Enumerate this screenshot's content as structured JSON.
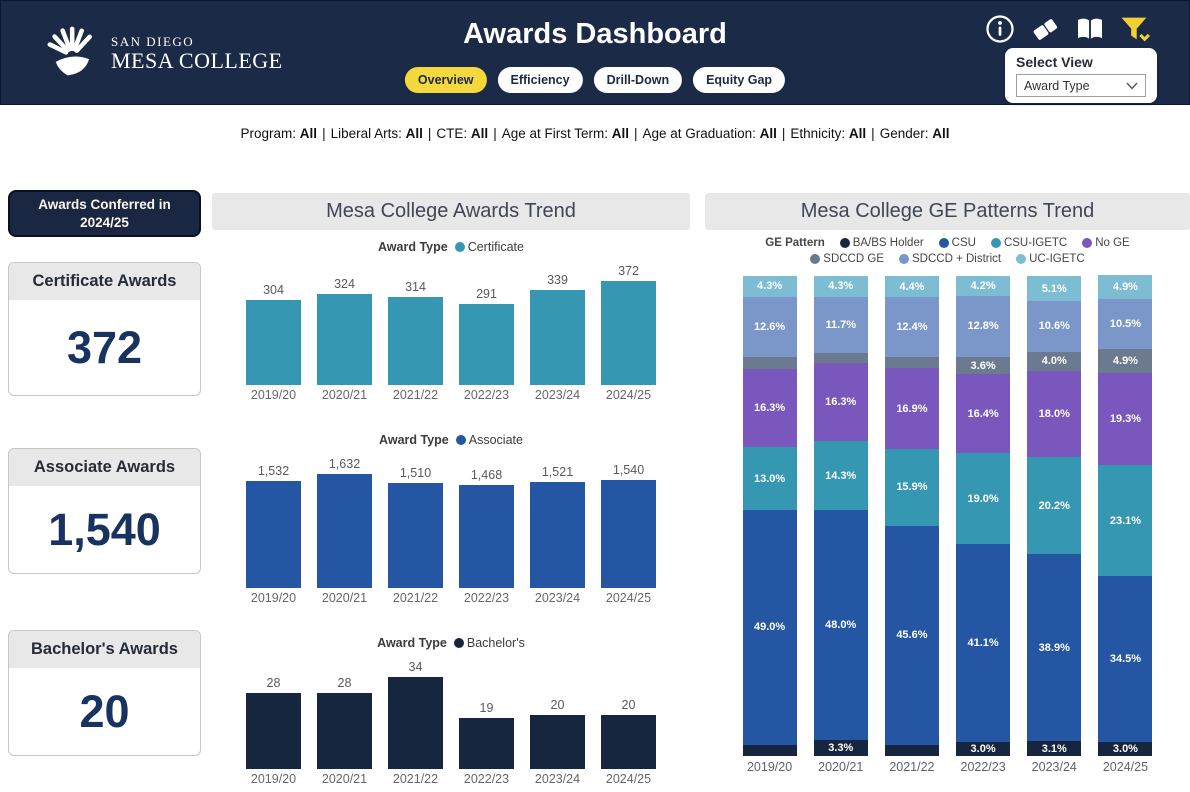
{
  "header": {
    "logo": {
      "line1": "SAN DIEGO",
      "line2": "MESA COLLEGE"
    },
    "title": "Awards Dashboard",
    "tabs": [
      {
        "label": "Overview",
        "active": true
      },
      {
        "label": "Efficiency",
        "active": false
      },
      {
        "label": "Drill-Down",
        "active": false
      },
      {
        "label": "Equity Gap",
        "active": false
      }
    ],
    "select_view": {
      "label": "Select View",
      "value": "Award Type"
    }
  },
  "filters": [
    {
      "label": "Program",
      "value": "All"
    },
    {
      "label": "Liberal Arts",
      "value": "All"
    },
    {
      "label": "CTE",
      "value": "All"
    },
    {
      "label": "Age at First Term",
      "value": "All"
    },
    {
      "label": "Age at Graduation",
      "value": "All"
    },
    {
      "label": "Ethnicity",
      "value": "All"
    },
    {
      "label": "Gender",
      "value": "All"
    }
  ],
  "kpi": {
    "badge": {
      "line1": "Awards Conferred in",
      "line2": "2024/25"
    },
    "cards": [
      {
        "title": "Certificate Awards",
        "value": "372"
      },
      {
        "title": "Associate Awards",
        "value": "1,540"
      },
      {
        "title": "Bachelor's Awards",
        "value": "20"
      }
    ]
  },
  "colors": {
    "header_bg": "#1b2a47",
    "accent_yellow": "#f5d93c",
    "navy": "#16263f",
    "blue": "#2456a4",
    "teal": "#3697b3",
    "purple": "#7a57bd",
    "gray": "#6c7a8f",
    "slate": "#7b96c9",
    "light_cyan": "#7dbdd3",
    "kpi_number": "#18335f"
  },
  "chart_data": [
    {
      "type": "bar",
      "title": "Mesa College Awards Trend",
      "legend_label": "Award Type",
      "series_name": "Certificate",
      "color": "#3697b3",
      "categories": [
        "2019/20",
        "2020/21",
        "2021/22",
        "2022/23",
        "2023/24",
        "2024/25"
      ],
      "values": [
        304,
        324,
        314,
        291,
        339,
        372
      ],
      "labels": [
        "304",
        "324",
        "314",
        "291",
        "339",
        "372"
      ]
    },
    {
      "type": "bar",
      "legend_label": "Award Type",
      "series_name": "Associate",
      "color": "#2456a4",
      "categories": [
        "2019/20",
        "2020/21",
        "2021/22",
        "2022/23",
        "2023/24",
        "2024/25"
      ],
      "values": [
        1532,
        1632,
        1510,
        1468,
        1521,
        1540
      ],
      "labels": [
        "1,532",
        "1,632",
        "1,510",
        "1,468",
        "1,521",
        "1,540"
      ]
    },
    {
      "type": "bar",
      "legend_label": "Award Type",
      "series_name": "Bachelor's",
      "color": "#16263f",
      "categories": [
        "2019/20",
        "2020/21",
        "2021/22",
        "2022/23",
        "2023/24",
        "2024/25"
      ],
      "values": [
        28,
        28,
        34,
        19,
        20,
        20
      ],
      "labels": [
        "28",
        "28",
        "34",
        "19",
        "20",
        "20"
      ]
    },
    {
      "type": "bar",
      "subtype": "stacked-percent",
      "title": "Mesa College GE Patterns Trend",
      "legend_label": "GE Pattern",
      "categories": [
        "2019/20",
        "2020/21",
        "2021/22",
        "2022/23",
        "2023/24",
        "2024/25"
      ],
      "ylim": [
        0,
        100
      ],
      "stack_order": "bottom-to-top",
      "series": [
        {
          "name": "BA/BS Holder",
          "color": "#16263f",
          "values": [
            2.3,
            3.3,
            2.4,
            3.0,
            3.1,
            3.0
          ],
          "labels": [
            null,
            "3.3%",
            null,
            "3.0%",
            "3.1%",
            "3.0%"
          ]
        },
        {
          "name": "CSU",
          "color": "#2456a4",
          "values": [
            49.0,
            48.0,
            45.6,
            41.1,
            38.9,
            34.5
          ],
          "labels": [
            "49.0%",
            "48.0%",
            "45.6%",
            "41.1%",
            "38.9%",
            "34.5%"
          ]
        },
        {
          "name": "CSU-IGETC",
          "color": "#3697b3",
          "values": [
            13.0,
            14.3,
            15.9,
            19.0,
            20.2,
            23.1
          ],
          "labels": [
            "13.0%",
            "14.3%",
            "15.9%",
            "19.0%",
            "20.2%",
            "23.1%"
          ]
        },
        {
          "name": "No GE",
          "color": "#7a57bd",
          "values": [
            16.3,
            16.3,
            16.9,
            16.4,
            18.0,
            19.3
          ],
          "labels": [
            "16.3%",
            "16.3%",
            "16.9%",
            "16.4%",
            "18.0%",
            "19.3%"
          ]
        },
        {
          "name": "SDCCD GE",
          "color": "#6c7a8f",
          "values": [
            2.5,
            2.1,
            2.4,
            3.6,
            4.0,
            4.9
          ],
          "labels": [
            null,
            null,
            null,
            "3.6%",
            "4.0%",
            "4.9%"
          ]
        },
        {
          "name": "SDCCD + District",
          "color": "#7b96c9",
          "values": [
            12.6,
            11.7,
            12.4,
            12.8,
            10.6,
            10.5
          ],
          "labels": [
            "12.6%",
            "11.7%",
            "12.4%",
            "12.8%",
            "10.6%",
            "10.5%"
          ]
        },
        {
          "name": "UC-IGETC",
          "color": "#7dbdd3",
          "values": [
            4.3,
            4.3,
            4.4,
            4.2,
            5.1,
            4.9
          ],
          "labels": [
            "4.3%",
            "4.3%",
            "4.4%",
            "4.2%",
            "5.1%",
            "4.9%"
          ]
        }
      ]
    }
  ]
}
